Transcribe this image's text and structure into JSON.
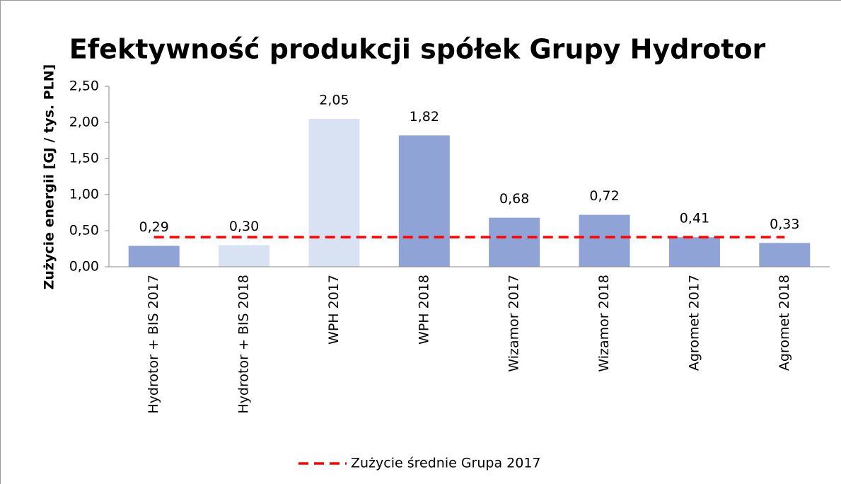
{
  "chart_data": {
    "type": "bar",
    "title": "Efektywność produkcji spółek Grupy Hydrotor",
    "y_axis_label": "Zużycie energii [GJ / tys. PLN]",
    "categories": [
      "Hydrotor + BIS 2017",
      "Hydrotor + BIS 2018",
      "WPH 2017",
      "WPH 2018",
      "Wizamor 2017",
      "Wizamor 2018",
      "Agromet 2017",
      "Agromet 2018"
    ],
    "values": [
      0.29,
      0.3,
      2.05,
      1.82,
      0.68,
      0.72,
      0.41,
      0.33
    ],
    "value_labels": [
      "0,29",
      "0,30",
      "2,05",
      "1,82",
      "0,68",
      "0,72",
      "0,41",
      "0,33"
    ],
    "colors": [
      "#8fa3d6",
      "#d9e2f3",
      "#d9e2f3",
      "#8fa3d6",
      "#8fa3d6",
      "#8fa3d6",
      "#8fa3d6",
      "#8fa3d6"
    ],
    "line_series": {
      "name": "Zużycie średnie Grupa 2017",
      "color": "#ff0000",
      "values": [
        0.41,
        0.41,
        0.41,
        0.41,
        0.41,
        0.41,
        0.41,
        0.41
      ]
    },
    "ylim": [
      0,
      2.5
    ],
    "yticks": [
      {
        "value": 0,
        "label": "0,00"
      },
      {
        "value": 0.5,
        "label": "0,50"
      },
      {
        "value": 1,
        "label": "1,00"
      },
      {
        "value": 1.5,
        "label": "1,50"
      },
      {
        "value": 2,
        "label": "2,00"
      },
      {
        "value": 2.5,
        "label": "2,50"
      }
    ],
    "legend": "bottom"
  }
}
